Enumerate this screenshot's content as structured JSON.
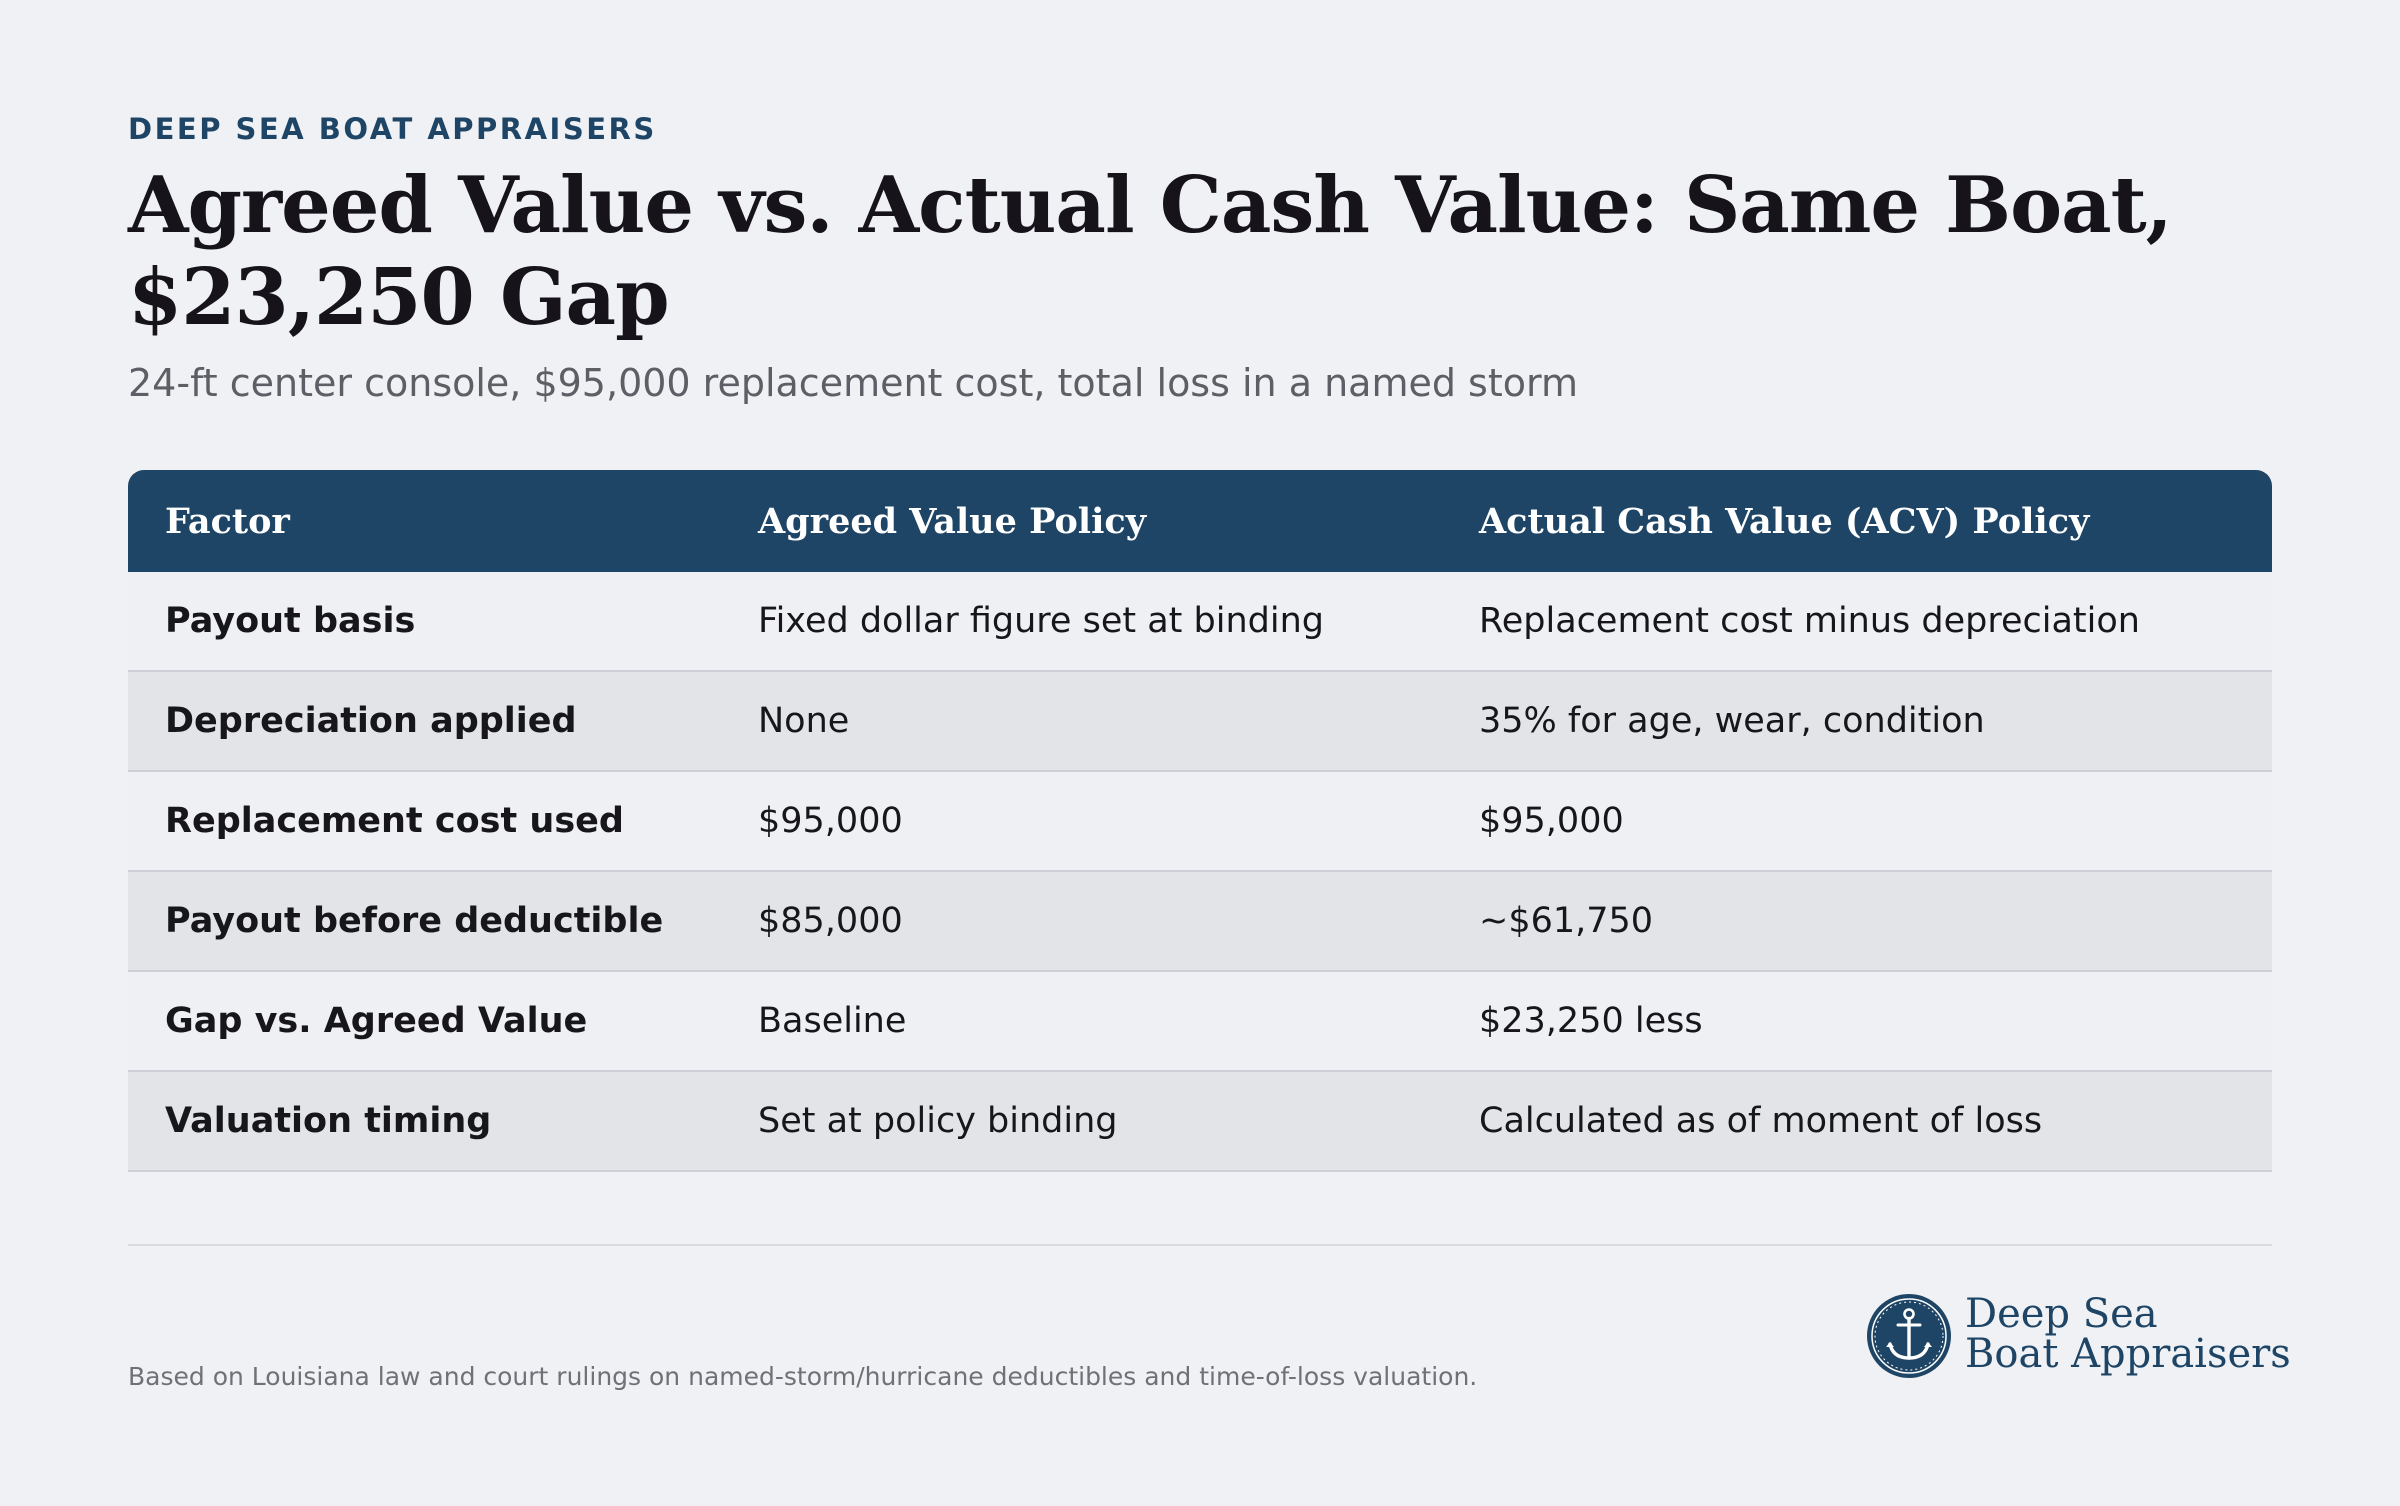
{
  "header": {
    "eyebrow": "DEEP SEA BOAT APPRAISERS",
    "title": "Agreed Value vs. Actual Cash Value: Same Boat, $23,250 Gap",
    "subtitle": "24-ft center console, $95,000 replacement cost, total loss in a named storm"
  },
  "table": {
    "columns": [
      "Factor",
      "Agreed Value Policy",
      "Actual Cash Value (ACV) Policy"
    ],
    "rows": [
      {
        "factor": "Payout basis",
        "agreed": "Fixed dollar figure set at binding",
        "acv": "Replacement cost minus depreciation"
      },
      {
        "factor": "Depreciation applied",
        "agreed": "None",
        "acv": "35% for age, wear, condition"
      },
      {
        "factor": "Replacement cost used",
        "agreed": "$95,000",
        "acv": "$95,000"
      },
      {
        "factor": "Payout before deductible",
        "agreed": "$85,000",
        "acv": "~$61,750"
      },
      {
        "factor": "Gap vs. Agreed Value",
        "agreed": "Baseline",
        "acv": "$23,250 less"
      },
      {
        "factor": "Valuation timing",
        "agreed": "Set at policy binding",
        "acv": "Calculated as of moment of loss"
      }
    ]
  },
  "footer": {
    "note": "Based on Louisiana law and court rulings on named-storm/hurricane deductibles and time-of-loss valuation.",
    "logo_line1": "Deep Sea",
    "logo_line2": "Boat Appraisers",
    "logo_icon": "anchor-icon"
  },
  "colors": {
    "background": "#f0f1f4",
    "brand_navy": "#1e4566",
    "row_alt": "#e2e4e8",
    "text": "#16131a"
  }
}
